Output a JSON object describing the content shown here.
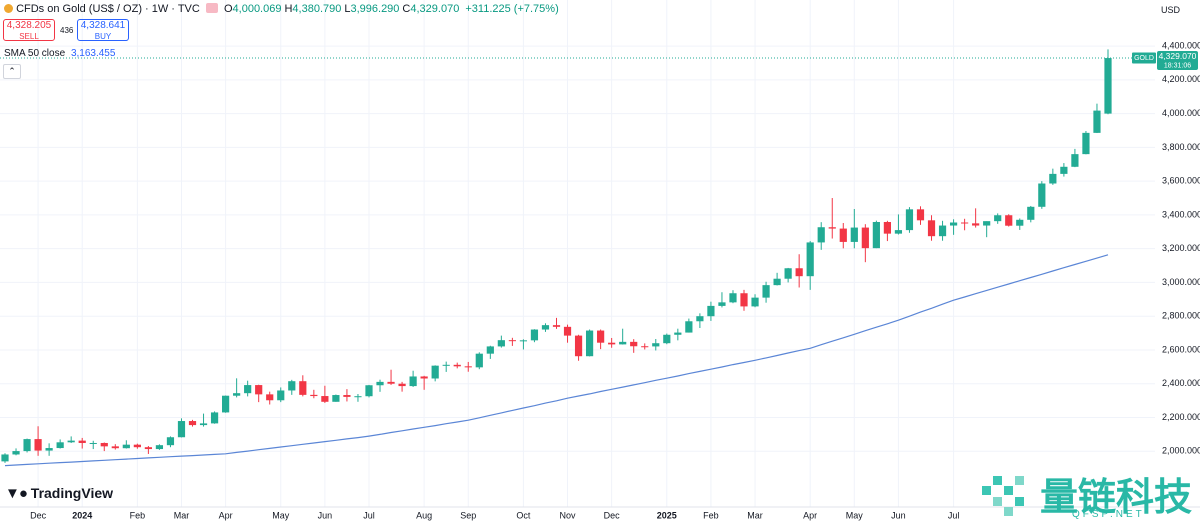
{
  "header": {
    "symbol": "CFDs on Gold (US$ / OZ) · 1W · TVC",
    "ohlc": [
      {
        "key": "O",
        "value": "4,000.069"
      },
      {
        "key": "H",
        "value": "4,380.790"
      },
      {
        "key": "L",
        "value": "3,996.290"
      },
      {
        "key": "C",
        "value": "4,329.070"
      }
    ],
    "change": "+311.225 (+7.75%)",
    "sell_price": "4,328.205",
    "sell": "SELL",
    "spread": "436",
    "buy_price": "4,328.641",
    "buy": "BUY",
    "currency": "USD",
    "brand": "TradingView"
  },
  "watermark": {
    "title": "量链科技",
    "url": "QFSP.NET"
  },
  "chart_data": {
    "type": "candlestick",
    "up_color": "#22ab94",
    "down_color": "#f23645",
    "grid": true,
    "categories": [
      null,
      null,
      null,
      "Dec",
      null,
      null,
      null,
      "2024",
      null,
      null,
      null,
      null,
      "Feb",
      null,
      null,
      null,
      "Mar",
      null,
      null,
      null,
      "Apr",
      null,
      null,
      null,
      null,
      "May",
      null,
      null,
      null,
      "Jun",
      null,
      null,
      null,
      "Jul",
      null,
      null,
      null,
      null,
      "Aug",
      null,
      null,
      null,
      "Sep",
      null,
      null,
      null,
      null,
      "Oct",
      null,
      null,
      null,
      "Nov",
      null,
      null,
      null,
      "Dec",
      null,
      null,
      null,
      null,
      "2025",
      null,
      null,
      null,
      "Feb",
      null,
      null,
      null,
      "Mar",
      null,
      null,
      null,
      null,
      "Apr",
      null,
      null,
      null,
      "May",
      null,
      null,
      null,
      "Jun",
      null,
      null,
      null,
      null,
      "Jul",
      null,
      null,
      null,
      null,
      null,
      null,
      null,
      null,
      null,
      null,
      null,
      null,
      null,
      null
    ],
    "open": [
      1940,
      1981,
      2001,
      2072,
      2004,
      2019,
      2053,
      2063,
      2049,
      2049,
      2029,
      2018,
      2039,
      2024,
      2013,
      2036,
      2083,
      2179,
      2155,
      2165,
      2230,
      2329,
      2344,
      2392,
      2337,
      2302,
      2360,
      2415,
      2334,
      2327,
      2293,
      2333,
      2322,
      2326,
      2391,
      2411,
      2400,
      2386,
      2443,
      2431,
      2507,
      2512,
      2503,
      2497,
      2578,
      2621,
      2658,
      2653,
      2657,
      2721,
      2747,
      2737,
      2685,
      2563,
      2715,
      2643,
      2633,
      2648,
      2622,
      2621,
      2640,
      2690,
      2703,
      2770,
      2800,
      2861,
      2882,
      2936,
      2858,
      2910,
      2984,
      3022,
      3084,
      3037,
      3237,
      3327,
      3319,
      3240,
      3325,
      3203,
      3358,
      3289,
      3310,
      3433,
      3368,
      3274,
      3337,
      3355,
      3350,
      3337,
      3363,
      3398,
      3336,
      3371,
      3448,
      3586,
      3643,
      3685,
      3760,
      3886,
      4000.069
    ],
    "high": [
      1988,
      2017,
      2075,
      2148,
      2047,
      2070,
      2088,
      2079,
      2062,
      2052,
      2042,
      2065,
      2045,
      2031,
      2041,
      2088,
      2195,
      2186,
      2223,
      2236,
      2330,
      2432,
      2418,
      2394,
      2353,
      2378,
      2423,
      2450,
      2364,
      2388,
      2336,
      2368,
      2339,
      2393,
      2424,
      2483,
      2411,
      2477,
      2447,
      2509,
      2531,
      2525,
      2529,
      2586,
      2625,
      2685,
      2672,
      2663,
      2723,
      2758,
      2790,
      2750,
      2690,
      2721,
      2721,
      2671,
      2726,
      2664,
      2639,
      2665,
      2697,
      2726,
      2786,
      2817,
      2886,
      2942,
      2954,
      2956,
      2930,
      3004,
      3057,
      3086,
      3167,
      3245,
      3357,
      3500,
      3352,
      3435,
      3345,
      3366,
      3365,
      3403,
      3446,
      3451,
      3398,
      3365,
      3374,
      3377,
      3439,
      3362,
      3409,
      3404,
      3379,
      3453,
      3600,
      3674,
      3707,
      3791,
      3897,
      4059,
      4380.79
    ],
    "low": [
      1931,
      1976,
      1993,
      1973,
      1973,
      2016,
      2049,
      2016,
      2013,
      2001,
      2010,
      2016,
      2015,
      1984,
      2008,
      2024,
      2082,
      2146,
      2146,
      2163,
      2228,
      2319,
      2325,
      2291,
      2277,
      2291,
      2334,
      2325,
      2314,
      2286,
      2293,
      2295,
      2293,
      2319,
      2352,
      2393,
      2353,
      2381,
      2364,
      2414,
      2470,
      2491,
      2471,
      2486,
      2547,
      2614,
      2624,
      2603,
      2646,
      2707,
      2725,
      2643,
      2536,
      2562,
      2605,
      2613,
      2632,
      2583,
      2603,
      2597,
      2634,
      2657,
      2703,
      2730,
      2772,
      2852,
      2877,
      2832,
      2853,
      2880,
      2982,
      3000,
      2970,
      2956,
      3193,
      3260,
      3202,
      3202,
      3120,
      3203,
      3245,
      3284,
      3294,
      3341,
      3247,
      3247,
      3282,
      3309,
      3325,
      3268,
      3347,
      3331,
      3311,
      3356,
      3436,
      3578,
      3627,
      3683,
      3759,
      3885,
      3996.29
    ],
    "close": [
      1981,
      2001,
      2072,
      2004,
      2019,
      2053,
      2063,
      2049,
      2049,
      2029,
      2018,
      2039,
      2024,
      2013,
      2036,
      2083,
      2179,
      2155,
      2165,
      2230,
      2329,
      2344,
      2392,
      2337,
      2302,
      2360,
      2415,
      2334,
      2327,
      2293,
      2333,
      2322,
      2326,
      2391,
      2411,
      2400,
      2386,
      2443,
      2431,
      2507,
      2512,
      2503,
      2497,
      2578,
      2621,
      2658,
      2653,
      2657,
      2721,
      2747,
      2737,
      2685,
      2563,
      2715,
      2643,
      2633,
      2648,
      2622,
      2621,
      2640,
      2690,
      2703,
      2770,
      2800,
      2861,
      2882,
      2936,
      2858,
      2910,
      2984,
      3022,
      3084,
      3037,
      3237,
      3327,
      3319,
      3240,
      3325,
      3203,
      3358,
      3289,
      3310,
      3433,
      3368,
      3274,
      3337,
      3355,
      3350,
      3337,
      3363,
      3398,
      3336,
      3371,
      3448,
      3586,
      3643,
      3685,
      3760,
      3886,
      4017.845,
      4329.07
    ],
    "series": [
      {
        "name": "SMA 50 close",
        "color": "#5b86d6",
        "legend_value": "3,163.455",
        "values": [
          1915,
          1918.5,
          1922,
          1925.5,
          1929,
          1932.5,
          1936,
          1939.5,
          1943,
          1946.5,
          1950,
          1953.5,
          1957,
          1960.5,
          1964,
          1967.5,
          1971,
          1974.5,
          1978,
          1981.5,
          1985,
          1993,
          2001,
          2009,
          2017,
          2025,
          2033,
          2041,
          2049,
          2057,
          2065,
          2073,
          2081,
          2090,
          2100,
          2111,
          2121,
          2132,
          2142,
          2152,
          2163,
          2173,
          2184,
          2198,
          2213,
          2227,
          2242,
          2256,
          2270,
          2285,
          2299,
          2314,
          2327,
          2340,
          2354,
          2367,
          2380,
          2393,
          2406,
          2420,
          2433,
          2446,
          2460,
          2473,
          2486,
          2499,
          2513,
          2526,
          2539,
          2553,
          2567,
          2582,
          2596,
          2610,
          2631,
          2652,
          2672,
          2693,
          2714,
          2735,
          2755,
          2776,
          2800,
          2824,
          2847,
          2871,
          2895,
          2914,
          2933,
          2953,
          2972,
          2991,
          3010,
          3029,
          3048,
          3068,
          3087,
          3106,
          3125,
          3144,
          3163.455
        ]
      }
    ],
    "last_price": {
      "name": "GOLD",
      "value": 4329.07,
      "label": "4,329.070",
      "time": "18:31:06"
    },
    "ylim": [
      1652,
      4673
    ],
    "yticks": [
      {
        "value": 2000,
        "label": "2,000.000"
      },
      {
        "value": 2200,
        "label": "2,200.000"
      },
      {
        "value": 2400,
        "label": "2,400.000"
      },
      {
        "value": 2600,
        "label": "2,600.000"
      },
      {
        "value": 2800,
        "label": "2,800.000"
      },
      {
        "value": 3000,
        "label": "3,000.000"
      },
      {
        "value": 3200,
        "label": "3,200.000"
      },
      {
        "value": 3400,
        "label": "3,400.000"
      },
      {
        "value": 3600,
        "label": "3,600.000"
      },
      {
        "value": 3800,
        "label": "3,800.000"
      },
      {
        "value": 4000,
        "label": "4,000.000"
      },
      {
        "value": 4200,
        "label": "4,200.000"
      },
      {
        "value": 4400,
        "label": "4,400.000"
      }
    ]
  }
}
